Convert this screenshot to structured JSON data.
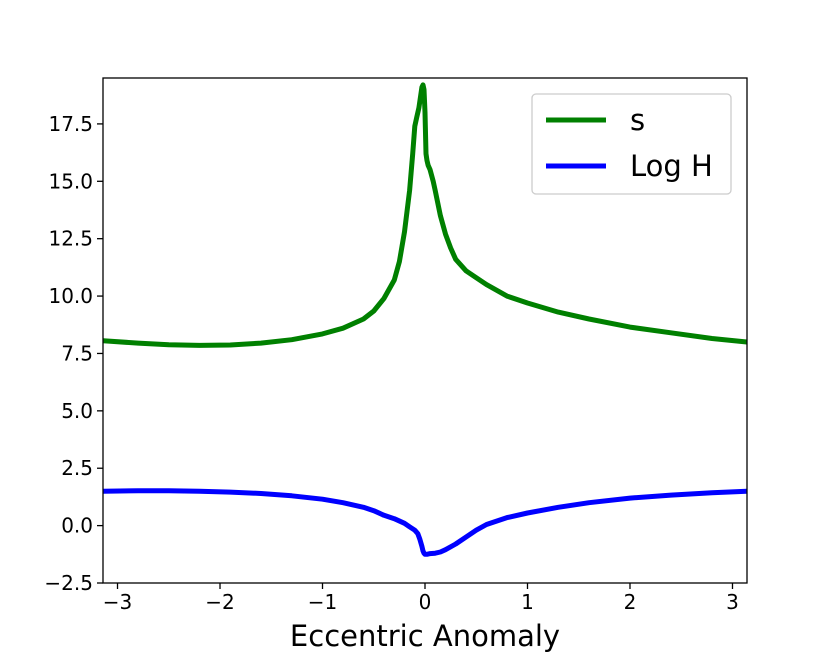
{
  "chart_data": {
    "type": "line",
    "title": "",
    "xlabel": "Eccentric Anomaly",
    "ylabel": "",
    "xlim": [
      -3.1416,
      3.1416
    ],
    "ylim": [
      -2.5,
      19.5
    ],
    "x_ticks": [
      -3,
      -2,
      -1,
      0,
      1,
      2,
      3
    ],
    "x_tick_labels": [
      "−3",
      "−2",
      "−1",
      "0",
      "1",
      "2",
      "3"
    ],
    "y_ticks": [
      -2.5,
      0.0,
      2.5,
      5.0,
      7.5,
      10.0,
      12.5,
      15.0,
      17.5
    ],
    "y_tick_labels": [
      "−2.5",
      "0.0",
      "2.5",
      "5.0",
      "7.5",
      "10.0",
      "12.5",
      "15.0",
      "17.5"
    ],
    "grid": false,
    "legend": {
      "position": "top-right",
      "entries": [
        "s",
        "Log H"
      ]
    },
    "series": [
      {
        "name": "s",
        "color": "#008000",
        "x": [
          -3.14,
          -2.8,
          -2.5,
          -2.2,
          -1.9,
          -1.6,
          -1.3,
          -1.0,
          -0.8,
          -0.6,
          -0.5,
          -0.4,
          -0.3,
          -0.25,
          -0.2,
          -0.15,
          -0.12,
          -0.1,
          -0.08,
          -0.06,
          -0.04,
          -0.03,
          -0.02,
          -0.01,
          0.0,
          0.01,
          0.02,
          0.03,
          0.05,
          0.08,
          0.1,
          0.15,
          0.2,
          0.25,
          0.3,
          0.4,
          0.5,
          0.6,
          0.8,
          1.0,
          1.3,
          1.6,
          2.0,
          2.4,
          2.8,
          3.14
        ],
        "y": [
          8.05,
          7.95,
          7.88,
          7.85,
          7.87,
          7.95,
          8.1,
          8.35,
          8.6,
          9.0,
          9.35,
          9.9,
          10.7,
          11.5,
          12.8,
          14.6,
          16.2,
          17.4,
          17.8,
          18.2,
          18.8,
          19.1,
          19.2,
          19.0,
          18.0,
          16.2,
          15.9,
          15.7,
          15.5,
          15.0,
          14.6,
          13.5,
          12.7,
          12.1,
          11.6,
          11.1,
          10.8,
          10.5,
          10.0,
          9.7,
          9.3,
          9.0,
          8.65,
          8.4,
          8.15,
          8.0
        ]
      },
      {
        "name": "Log H",
        "color": "#0000ff",
        "x": [
          -3.14,
          -2.8,
          -2.5,
          -2.2,
          -1.9,
          -1.6,
          -1.3,
          -1.0,
          -0.8,
          -0.6,
          -0.5,
          -0.4,
          -0.3,
          -0.2,
          -0.15,
          -0.1,
          -0.07,
          -0.05,
          -0.03,
          -0.02,
          -0.01,
          0.0,
          0.02,
          0.05,
          0.1,
          0.15,
          0.2,
          0.3,
          0.4,
          0.5,
          0.6,
          0.8,
          1.0,
          1.3,
          1.6,
          2.0,
          2.4,
          2.8,
          3.14
        ],
        "y": [
          1.5,
          1.52,
          1.52,
          1.5,
          1.46,
          1.4,
          1.3,
          1.15,
          1.0,
          0.8,
          0.65,
          0.45,
          0.3,
          0.1,
          -0.05,
          -0.2,
          -0.35,
          -0.6,
          -0.9,
          -1.1,
          -1.2,
          -1.25,
          -1.25,
          -1.22,
          -1.2,
          -1.15,
          -1.05,
          -0.8,
          -0.5,
          -0.2,
          0.05,
          0.35,
          0.55,
          0.8,
          1.0,
          1.2,
          1.33,
          1.43,
          1.5
        ]
      }
    ]
  }
}
